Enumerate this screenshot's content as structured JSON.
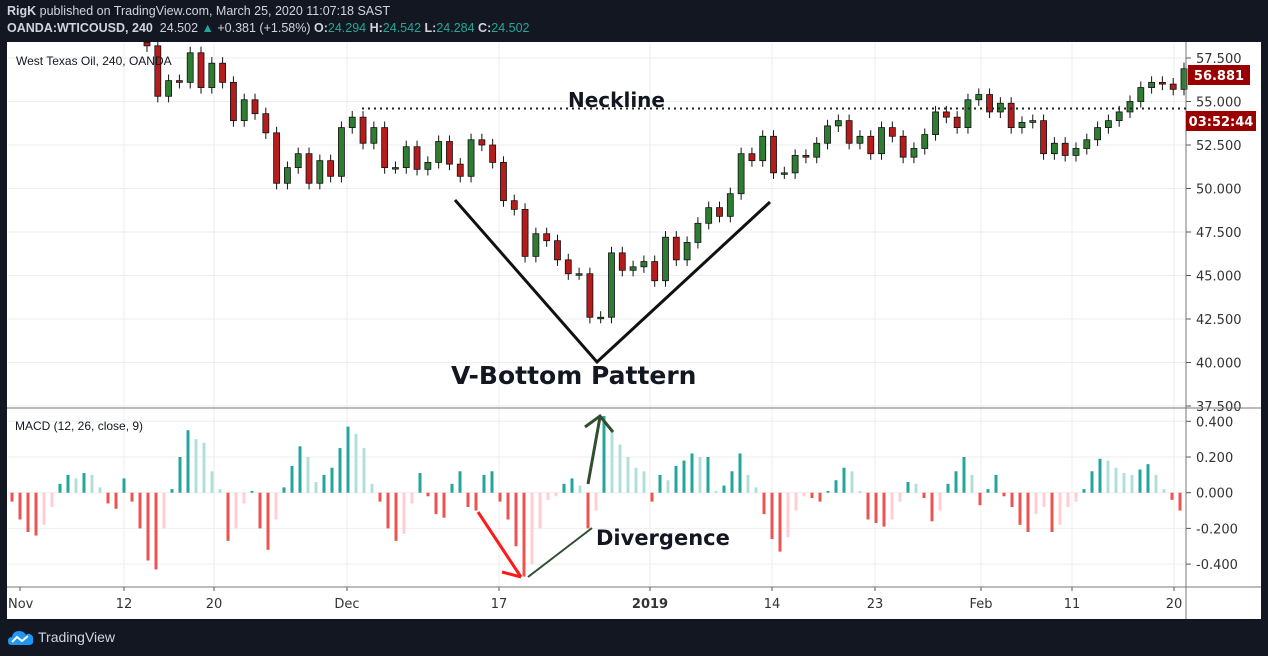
{
  "header": {
    "publisher": "RigK",
    "published_text": "published on TradingView.com, March 25, 2020 11:07:18 SAST",
    "symbol": "OANDA:WTICOUSD, 240",
    "last": "24.502",
    "change": "+0.381 (+1.58%)",
    "o_label": "O:",
    "o": "24.294",
    "h_label": "H:",
    "h": "24.542",
    "l_label": "L:",
    "l": "24.284",
    "c_label": "C:",
    "c": "24.502"
  },
  "colors": {
    "up": "#2e7d32",
    "down": "#b71c1c",
    "hist_up_strong": "#26a69a",
    "hist_up_weak": "#b2dfdb",
    "hist_down_strong": "#ef5350",
    "hist_down_weak": "#ffcdd2",
    "price_label": "#990000"
  },
  "price_pane": {
    "title": "West Texas Oil, 240, OANDA",
    "last_price_label": "56.881",
    "countdown_label": "03:52:44",
    "annotations": {
      "neckline": "Neckline",
      "pattern": "V-Bottom Pattern",
      "neckline_price": 54.6
    }
  },
  "macd_pane": {
    "title": "MACD (12, 26, close, 9)",
    "annotation": "Divergence"
  },
  "footer": {
    "brand": "TradingView"
  },
  "chart_data": [
    {
      "type": "candlestick",
      "title": "West Texas Oil, 240, OANDA",
      "ylim": [
        37.5,
        58.5
      ],
      "y_ticks": [
        "57.500",
        "55.000",
        "52.500",
        "50.000",
        "47.500",
        "45.000",
        "42.500",
        "40.000",
        "37.500"
      ],
      "x_ticks": [
        "Nov",
        "12",
        "20",
        "Dec",
        "17",
        "2019",
        "14",
        "23",
        "Feb",
        "11",
        "20"
      ],
      "grid": true,
      "close": [
        58.2,
        55.3,
        56.2,
        56.1,
        57.8,
        55.8,
        57.2,
        56.1,
        53.9,
        55.1,
        54.3,
        53.2,
        50.3,
        51.2,
        52.0,
        50.3,
        51.6,
        50.7,
        53.5,
        54.1,
        52.6,
        53.5,
        51.2,
        51.2,
        52.4,
        51.1,
        51.5,
        52.7,
        51.4,
        50.7,
        52.8,
        52.5,
        51.5,
        49.3,
        48.8,
        46.1,
        47.4,
        47.0,
        45.9,
        45.1,
        45.1,
        42.6,
        42.6,
        46.3,
        45.3,
        45.5,
        45.8,
        44.7,
        47.2,
        45.9,
        46.9,
        48.0,
        48.9,
        48.4,
        49.7,
        52.0,
        51.6,
        53.0,
        50.9,
        50.9,
        51.9,
        51.8,
        52.6,
        53.6,
        53.9,
        52.6,
        53.0,
        52.0,
        53.5,
        53.0,
        51.8,
        52.3,
        53.1,
        54.4,
        54.1,
        53.5,
        55.1,
        55.4,
        54.4,
        54.9,
        53.5,
        53.8,
        53.9,
        52.0,
        52.6,
        51.9,
        52.3,
        52.8,
        53.5,
        53.9,
        54.4,
        55.0,
        55.8,
        56.1,
        56.0,
        55.7,
        56.881
      ]
    },
    {
      "type": "bar",
      "title": "MACD (12, 26, close, 9)",
      "ylim": [
        -0.53,
        0.47
      ],
      "y_ticks": [
        "0.400",
        "0.200",
        "0.000",
        "-0.200",
        "-0.400"
      ],
      "grid": true,
      "values": [
        -0.05,
        -0.15,
        -0.22,
        -0.24,
        -0.18,
        -0.08,
        0.05,
        0.1,
        0.08,
        0.11,
        0.1,
        0.03,
        -0.06,
        -0.09,
        0.08,
        -0.05,
        -0.2,
        -0.38,
        -0.43,
        -0.2,
        0.02,
        0.2,
        0.35,
        0.3,
        0.28,
        0.12,
        0.02,
        -0.27,
        -0.2,
        -0.06,
        0.01,
        -0.2,
        -0.32,
        -0.15,
        0.03,
        0.15,
        0.26,
        0.2,
        0.06,
        0.1,
        0.14,
        0.25,
        0.37,
        0.33,
        0.25,
        0.05,
        -0.05,
        -0.2,
        -0.27,
        -0.23,
        -0.06,
        0.11,
        -0.02,
        -0.12,
        -0.14,
        0.05,
        0.12,
        -0.08,
        -0.1,
        0.1,
        0.12,
        -0.05,
        -0.15,
        -0.3,
        -0.47,
        -0.4,
        -0.2,
        -0.04,
        -0.02,
        0.05,
        0.08,
        0.04,
        -0.2,
        -0.1,
        0.43,
        0.35,
        0.27,
        0.2,
        0.14,
        0.12,
        -0.05,
        0.1,
        0.07,
        0.15,
        0.18,
        0.22,
        0.2,
        0.2,
        0.01,
        0.04,
        0.12,
        0.22,
        0.1,
        0.03,
        -0.12,
        -0.26,
        -0.33,
        -0.25,
        -0.1,
        -0.02,
        -0.03,
        -0.05,
        0.01,
        0.07,
        0.14,
        0.12,
        0.01,
        -0.15,
        -0.17,
        -0.19,
        -0.15,
        -0.05,
        0.06,
        0.05,
        -0.03,
        -0.16,
        -0.1,
        0.05,
        0.12,
        0.2,
        0.1,
        -0.07,
        0.02,
        0.1,
        -0.02,
        -0.08,
        -0.18,
        -0.22,
        -0.12,
        -0.08,
        -0.22,
        -0.18,
        -0.08,
        -0.05,
        0.02,
        0.12,
        0.19,
        0.18,
        0.14,
        0.11,
        0.1,
        0.13,
        0.16,
        0.1,
        0.02,
        -0.04,
        -0.1
      ]
    }
  ]
}
